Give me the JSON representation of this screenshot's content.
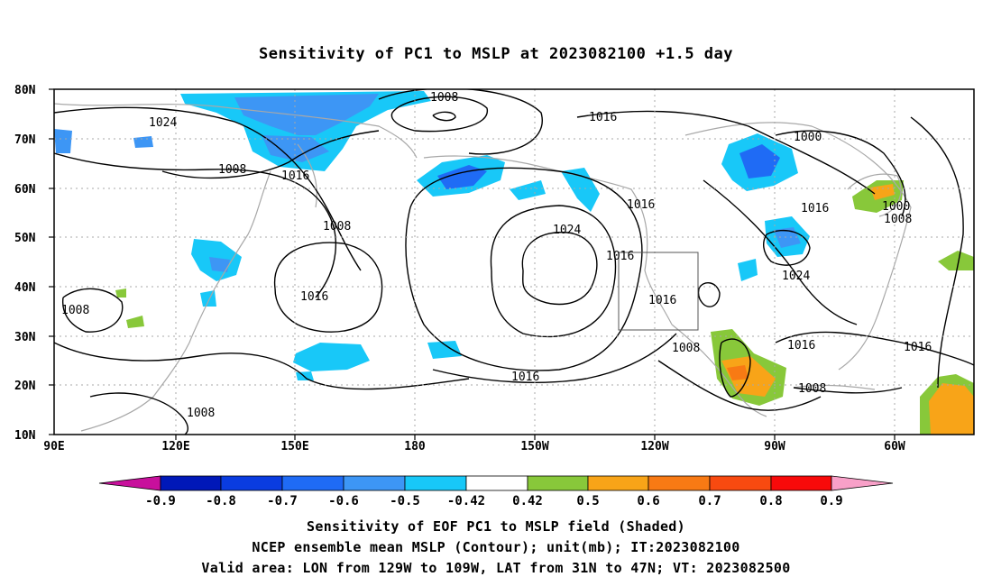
{
  "title": "Sensitivity of PC1 to MSLP at 2023082100 +1.5 day",
  "lat_ticks": [
    "80N",
    "70N",
    "60N",
    "50N",
    "40N",
    "30N",
    "20N",
    "10N"
  ],
  "lon_ticks": [
    "90E",
    "120E",
    "150E",
    "180",
    "150W",
    "120W",
    "90W",
    "60W"
  ],
  "contour_labels": [
    "1008",
    "1024",
    "1016",
    "1008",
    "1008",
    "1016",
    "1008",
    "1016",
    "1024",
    "1016",
    "1016",
    "1016",
    "1008",
    "1016",
    "1008",
    "1000",
    "1000",
    "1016",
    "1008",
    "1024",
    "1016",
    "1016",
    "1008"
  ],
  "colorbar": {
    "labels": [
      "-0.9",
      "-0.8",
      "-0.7",
      "-0.6",
      "-0.5",
      "-0.42",
      "0.42",
      "0.5",
      "0.6",
      "0.7",
      "0.8",
      "0.9"
    ],
    "colors": [
      "#c8109c",
      "#0018b8",
      "#0a3ce0",
      "#1f6bf5",
      "#3d96f5",
      "#18c8f8",
      "#ffffff",
      "#88c83a",
      "#f8a418",
      "#f87a14",
      "#f84a10",
      "#f80a0a",
      "#f8a0c8"
    ]
  },
  "captions": {
    "line1": "Sensitivity of EOF PC1 to MSLP field (Shaded)",
    "line2": "NCEP ensemble mean MSLP (Contour); unit(mb); IT:2023082100",
    "line3": "Valid area: LON from 129W to 109W, LAT from 31N to 47N; VT: 2023082500"
  }
}
